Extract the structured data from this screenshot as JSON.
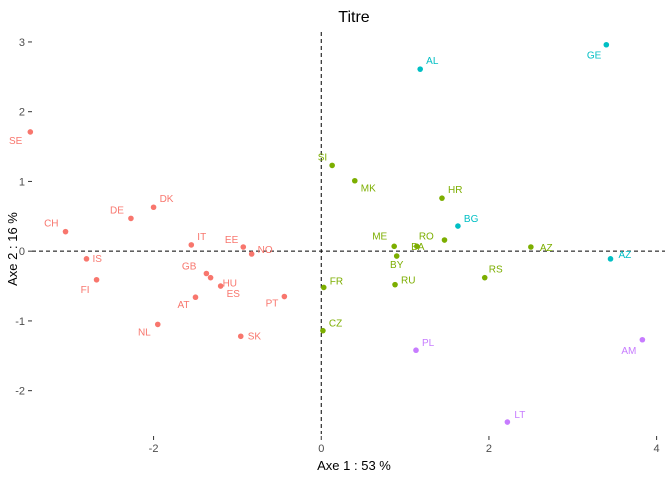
{
  "chart_data": {
    "type": "scatter",
    "title": "Titre",
    "xlabel": "Axe 1 : 53 %",
    "ylabel": "Axe 2 : 16 %",
    "xlim": [
      -3.45,
      4.1
    ],
    "ylim": [
      -2.65,
      3.2
    ],
    "x_ticks": [
      -2,
      0,
      2,
      4
    ],
    "y_ticks": [
      -2,
      -1,
      0,
      1,
      2,
      3
    ],
    "reference_lines": {
      "x": 0,
      "y": 0,
      "style": "dashed"
    },
    "grid": false,
    "legend": "none",
    "groups": [
      {
        "color": "#F8766D",
        "points": [
          {
            "label": "SE",
            "x": -3.47,
            "y": 1.71
          },
          {
            "label": "CH",
            "x": -3.05,
            "y": 0.28
          },
          {
            "label": "IS",
            "x": -2.8,
            "y": -0.11
          },
          {
            "label": "FI",
            "x": -2.68,
            "y": -0.41
          },
          {
            "label": "DE",
            "x": -2.27,
            "y": 0.47
          },
          {
            "label": "DK",
            "x": -2.0,
            "y": 0.63
          },
          {
            "label": "NL",
            "x": -1.95,
            "y": -1.05
          },
          {
            "label": "IT",
            "x": -1.55,
            "y": 0.09
          },
          {
            "label": "AT",
            "x": -1.5,
            "y": -0.66
          },
          {
            "label": "GB",
            "x": -1.37,
            "y": -0.32
          },
          {
            "label": "HU",
            "x": -1.32,
            "y": -0.38
          },
          {
            "label": "ES",
            "x": -1.2,
            "y": -0.5
          },
          {
            "label": "SK",
            "x": -0.96,
            "y": -1.22
          },
          {
            "label": "EE",
            "x": -0.93,
            "y": 0.06
          },
          {
            "label": "NO",
            "x": -0.83,
            "y": -0.04
          },
          {
            "label": "PT",
            "x": -0.44,
            "y": -0.65
          }
        ]
      },
      {
        "color": "#7CAE00",
        "points": [
          {
            "label": "SI",
            "x": 0.13,
            "y": 1.23
          },
          {
            "label": "MK",
            "x": 0.4,
            "y": 1.01
          },
          {
            "label": "FR",
            "x": 0.03,
            "y": -0.52
          },
          {
            "label": "CZ",
            "x": 0.02,
            "y": -1.14
          },
          {
            "label": "ME",
            "x": 0.87,
            "y": 0.07
          },
          {
            "label": "BY",
            "x": 0.9,
            "y": -0.07
          },
          {
            "label": "RU",
            "x": 0.88,
            "y": -0.48
          },
          {
            "label": "RO",
            "x": 1.14,
            "y": 0.07
          },
          {
            "label": "HR",
            "x": 1.44,
            "y": 0.76
          },
          {
            "label": "BA",
            "x": 1.47,
            "y": 0.16
          },
          {
            "label": "RS",
            "x": 1.95,
            "y": -0.38
          },
          {
            "label": "AZ",
            "x": 2.5,
            "y": 0.06
          }
        ]
      },
      {
        "color": "#00BFC4",
        "points": [
          {
            "label": "AL",
            "x": 1.18,
            "y": 2.61
          },
          {
            "label": "GE",
            "x": 3.4,
            "y": 2.96
          },
          {
            "label": "BG",
            "x": 1.63,
            "y": 0.36
          },
          {
            "label": "AZ",
            "x": 3.45,
            "y": -0.11
          }
        ]
      },
      {
        "color": "#C77CFF",
        "points": [
          {
            "label": "PL",
            "x": 1.13,
            "y": -1.42
          },
          {
            "label": "AM",
            "x": 3.83,
            "y": -1.27
          },
          {
            "label": "LT",
            "x": 2.22,
            "y": -2.45
          }
        ]
      }
    ]
  }
}
